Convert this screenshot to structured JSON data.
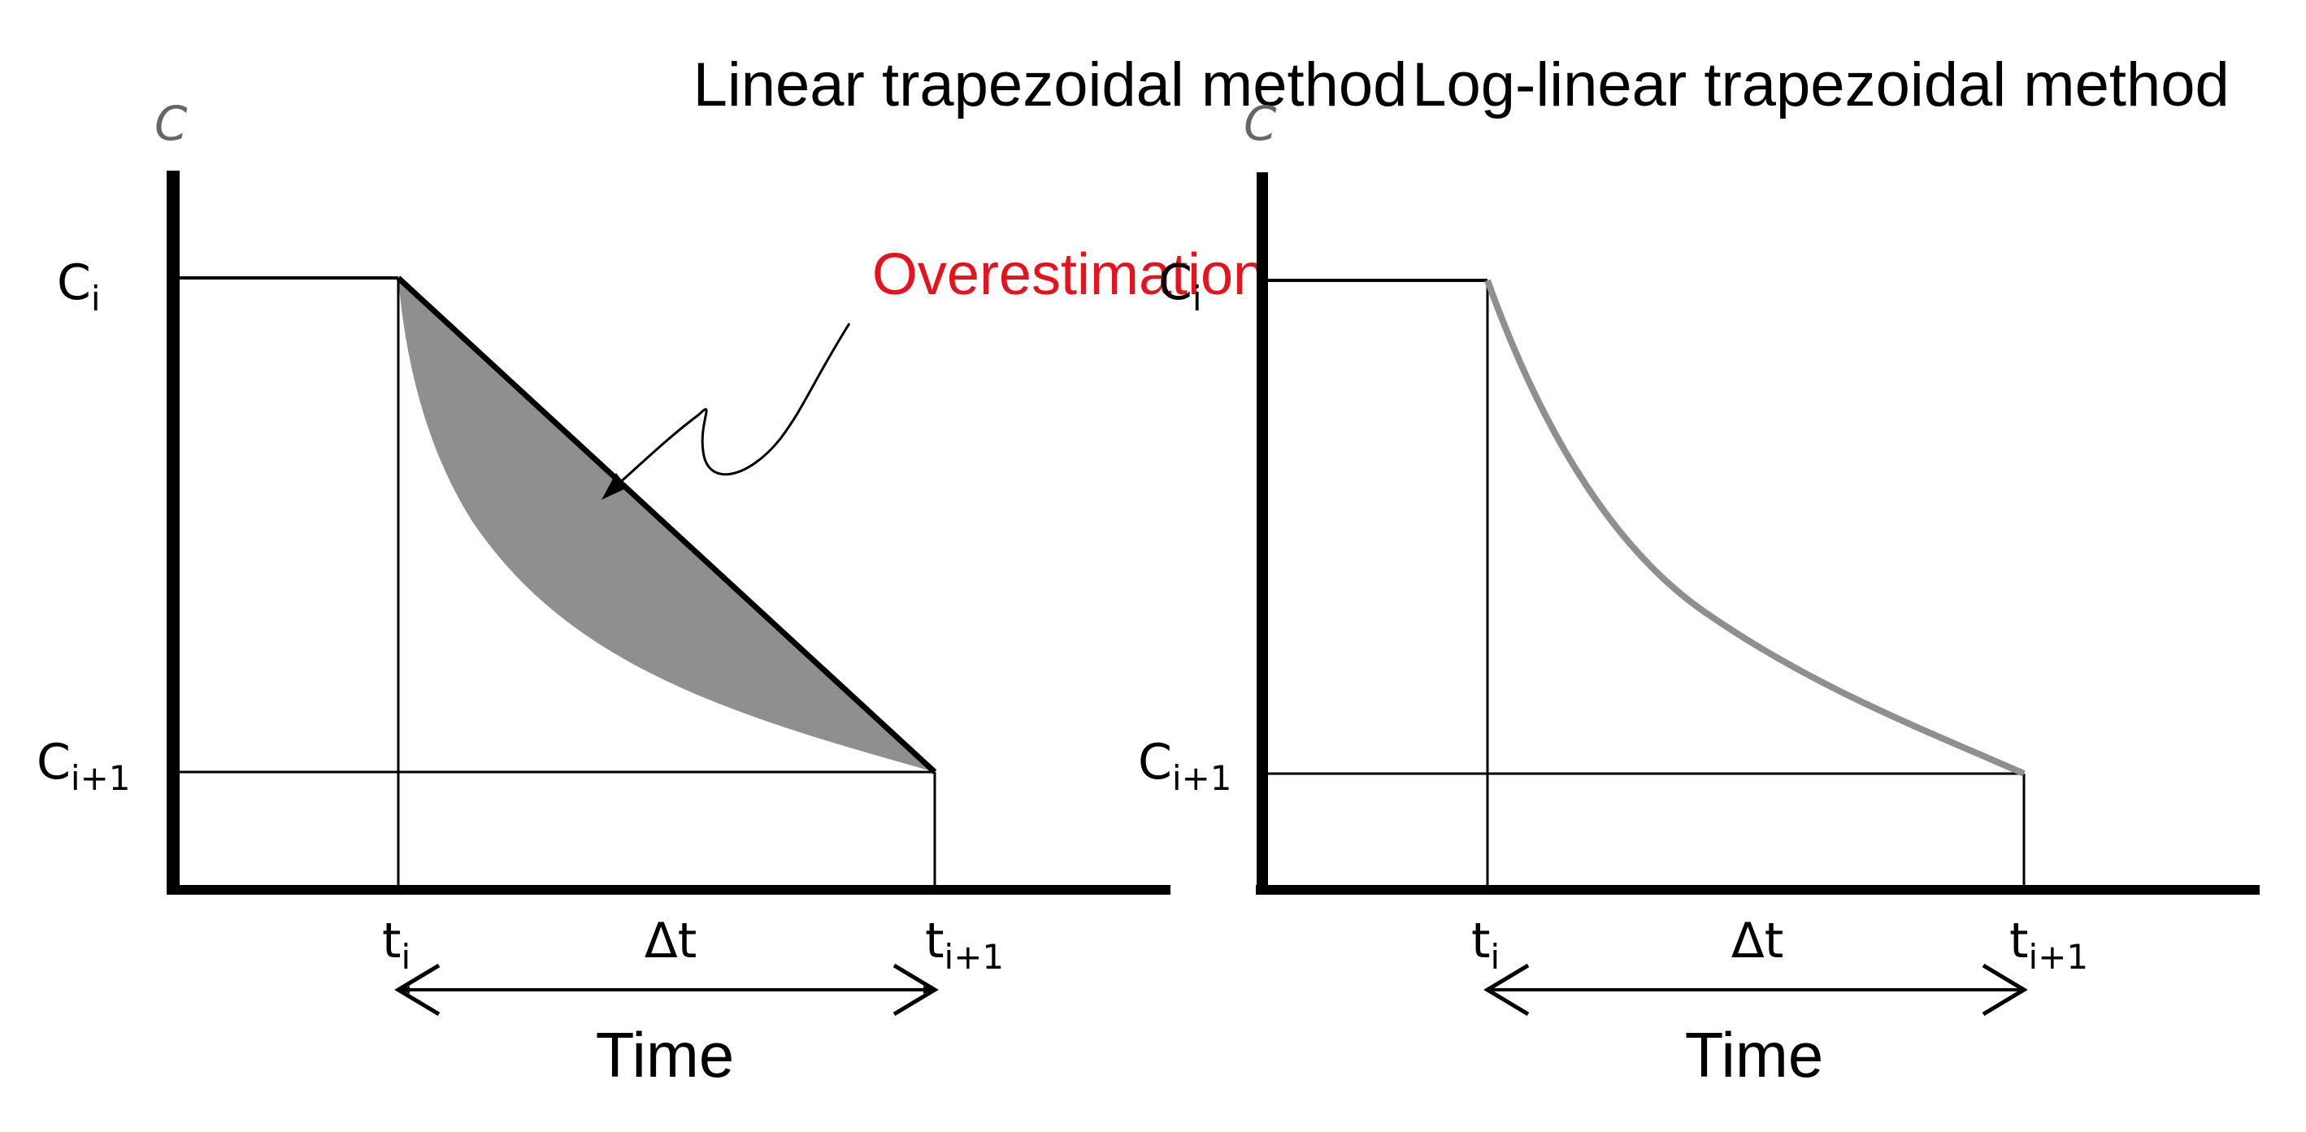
{
  "panels": [
    {
      "title": "Linear trapezoidal method",
      "y_axis_label": "C",
      "c_i": {
        "base": "C",
        "sub": "i"
      },
      "c_i1": {
        "base": "C",
        "sub": "i+1"
      },
      "t_i": {
        "base": "t",
        "sub": "i"
      },
      "t_i1": {
        "base": "t",
        "sub": "i+1"
      },
      "delta_label": "Δt",
      "x_axis_label": "Time",
      "annotation": "Overestimation",
      "annotation_color": "#e8121c"
    },
    {
      "title": "Log-linear trapezoidal method",
      "y_axis_label": "C",
      "c_i": {
        "base": "C",
        "sub": "i"
      },
      "c_i1": {
        "base": "C",
        "sub": "i+1"
      },
      "t_i": {
        "base": "t",
        "sub": "i"
      },
      "t_i1": {
        "base": "t",
        "sub": "i+1"
      },
      "delta_label": "Δt",
      "x_axis_label": "Time"
    }
  ]
}
